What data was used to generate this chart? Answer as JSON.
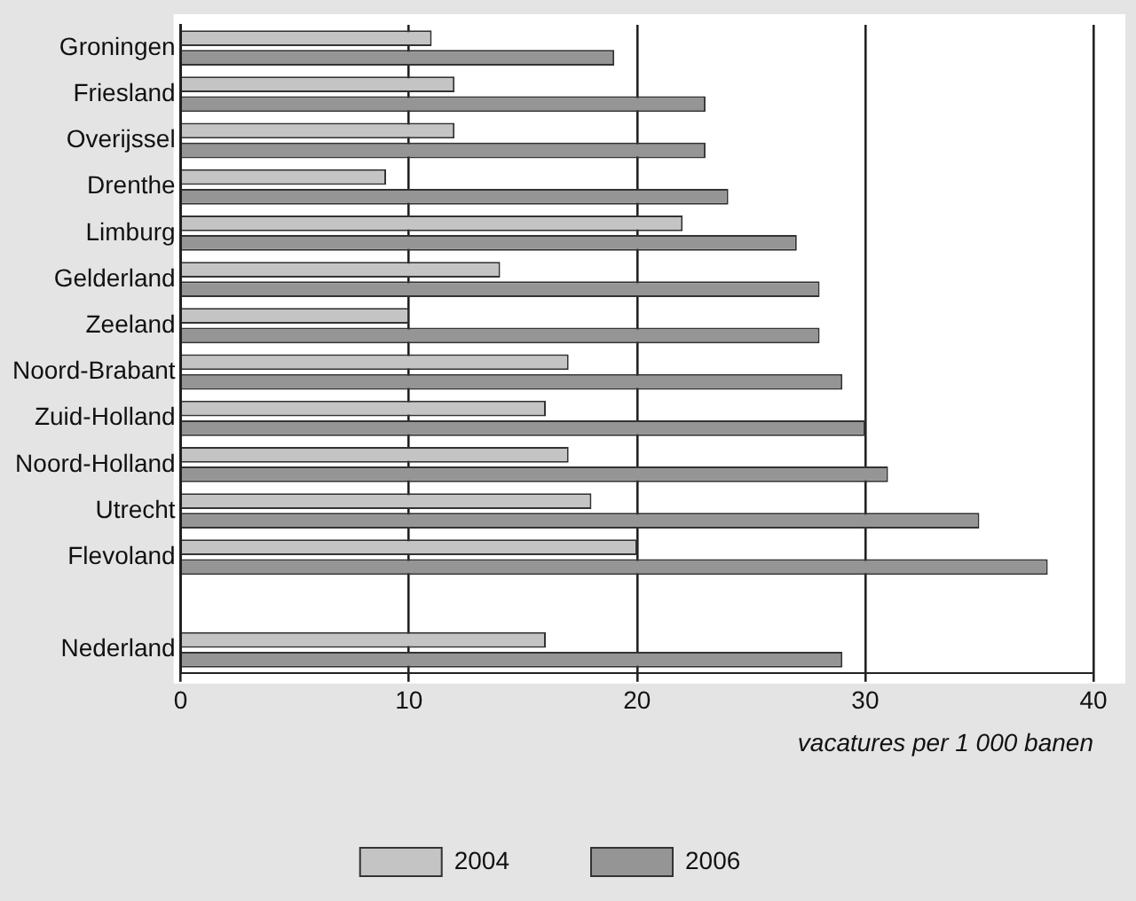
{
  "chart_data": {
    "type": "bar",
    "orientation": "horizontal",
    "xlabel": "vacatures per 1 000 banen",
    "categories": [
      "Groningen",
      "Friesland",
      "Overijssel",
      "Drenthe",
      "Limburg",
      "Gelderland",
      "Zeeland",
      "Noord-Brabant",
      "Zuid-Holland",
      "Noord-Holland",
      "Utrecht",
      "Flevoland",
      null,
      "Nederland"
    ],
    "series": [
      {
        "name": "2004",
        "color": "#c4c4c4",
        "values": [
          11,
          12,
          12,
          9,
          22,
          14,
          10,
          17,
          16,
          17,
          18,
          20,
          null,
          16
        ]
      },
      {
        "name": "2006",
        "color": "#959595",
        "values": [
          19,
          23,
          23,
          24,
          27,
          28,
          28,
          29,
          30,
          31,
          35,
          38,
          null,
          29
        ]
      }
    ],
    "xlim": [
      0,
      40
    ],
    "xticks": [
      0,
      10,
      20,
      30,
      40
    ],
    "grid": "x",
    "legend": "bottom"
  }
}
